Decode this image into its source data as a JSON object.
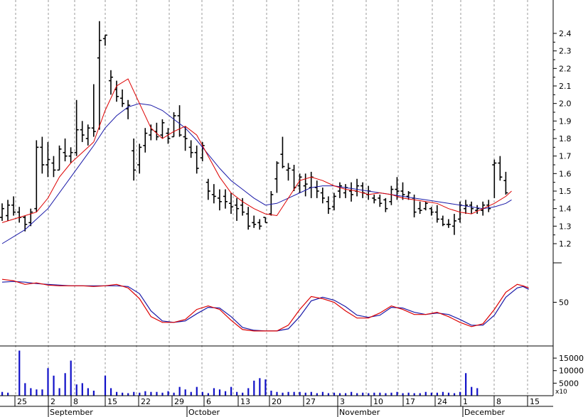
{
  "chart_data": {
    "type": "stock-chart",
    "colors": {
      "bar": "#000000",
      "ma_fast": "#dd0000",
      "ma_slow": "#1a1aa8",
      "volume": "#1010c8",
      "grid": "#9a9a9a"
    },
    "x_axis": {
      "day_labels": [
        "25",
        "2",
        "8",
        "15",
        "22",
        "29",
        "6",
        "13",
        "20",
        "27",
        "3",
        "10",
        "17",
        "24",
        "1",
        "8",
        "15"
      ],
      "month_labels": [
        "September",
        "October",
        "November",
        "December"
      ]
    },
    "price_panel": {
      "y_ticks": [
        "1.2",
        "1.3",
        "1.4",
        "1.5",
        "1.6",
        "1.7",
        "1.8",
        "1.9",
        "2.0",
        "2.1",
        "2.2",
        "2.3",
        "2.4"
      ],
      "ylim": [
        1.12,
        2.6
      ],
      "bars": [
        [
          1.43,
          1.33,
          1.35,
          1.4
        ],
        [
          1.45,
          1.33,
          1.36,
          1.42
        ],
        [
          1.47,
          1.36,
          1.42,
          1.38
        ],
        [
          1.41,
          1.32,
          1.38,
          1.35
        ],
        [
          1.36,
          1.27,
          1.35,
          1.31
        ],
        [
          1.4,
          1.3,
          1.32,
          1.38
        ],
        [
          1.79,
          1.38,
          1.4,
          1.75
        ],
        [
          1.81,
          1.6,
          1.75,
          1.65
        ],
        [
          1.78,
          1.58,
          1.65,
          1.68
        ],
        [
          1.7,
          1.58,
          1.66,
          1.62
        ],
        [
          1.76,
          1.62,
          1.62,
          1.74
        ],
        [
          1.8,
          1.67,
          1.72,
          1.7
        ],
        [
          1.75,
          1.66,
          1.7,
          1.72
        ],
        [
          2.02,
          1.7,
          1.72,
          1.85
        ],
        [
          1.9,
          1.78,
          1.85,
          1.82
        ],
        [
          1.88,
          1.76,
          1.8,
          1.86
        ],
        [
          2.11,
          1.81,
          1.86,
          1.84
        ],
        [
          2.47,
          1.85,
          2.26,
          2.36
        ],
        [
          2.39,
          2.33,
          2.37,
          2.39
        ],
        [
          2.19,
          2.05,
          2.13,
          2.15
        ],
        [
          2.13,
          2.01,
          2.08,
          2.04
        ],
        [
          2.08,
          1.98,
          2.03,
          2.0
        ],
        [
          2.02,
          1.91,
          1.97,
          1.99
        ],
        [
          1.8,
          1.56,
          1.73,
          1.62
        ],
        [
          1.77,
          1.6,
          1.65,
          1.75
        ],
        [
          1.86,
          1.72,
          1.76,
          1.83
        ],
        [
          1.88,
          1.79,
          1.82,
          1.85
        ],
        [
          1.89,
          1.79,
          1.84,
          1.81
        ],
        [
          1.91,
          1.8,
          1.82,
          1.89
        ],
        [
          1.86,
          1.77,
          1.83,
          1.8
        ],
        [
          1.95,
          1.81,
          1.81,
          1.93
        ],
        [
          1.99,
          1.81,
          1.93,
          1.82
        ],
        [
          1.87,
          1.73,
          1.81,
          1.8
        ],
        [
          1.79,
          1.69,
          1.75,
          1.72
        ],
        [
          1.76,
          1.6,
          1.72,
          1.63
        ],
        [
          1.78,
          1.67,
          1.69,
          1.76
        ],
        [
          1.57,
          1.45,
          1.55,
          1.5
        ],
        [
          1.54,
          1.43,
          1.48,
          1.47
        ],
        [
          1.51,
          1.39,
          1.46,
          1.44
        ],
        [
          1.51,
          1.4,
          1.47,
          1.44
        ],
        [
          1.49,
          1.37,
          1.43,
          1.41
        ],
        [
          1.46,
          1.33,
          1.42,
          1.4
        ],
        [
          1.46,
          1.36,
          1.42,
          1.38
        ],
        [
          1.41,
          1.28,
          1.37,
          1.3
        ],
        [
          1.36,
          1.29,
          1.32,
          1.31
        ],
        [
          1.34,
          1.28,
          1.32,
          1.3
        ],
        [
          1.35,
          1.32,
          1.35,
          1.32
        ],
        [
          1.5,
          1.36,
          1.37,
          1.48
        ],
        [
          1.67,
          1.49,
          1.57,
          1.66
        ],
        [
          1.81,
          1.63,
          1.71,
          1.64
        ],
        [
          1.66,
          1.56,
          1.62,
          1.63
        ],
        [
          1.65,
          1.5,
          1.62,
          1.52
        ],
        [
          1.6,
          1.49,
          1.53,
          1.58
        ],
        [
          1.6,
          1.47,
          1.53,
          1.54
        ],
        [
          1.61,
          1.46,
          1.52,
          1.58
        ],
        [
          1.56,
          1.46,
          1.52,
          1.5
        ],
        [
          1.52,
          1.43,
          1.49,
          1.46
        ],
        [
          1.47,
          1.37,
          1.44,
          1.4
        ],
        [
          1.49,
          1.39,
          1.41,
          1.47
        ],
        [
          1.55,
          1.46,
          1.5,
          1.53
        ],
        [
          1.54,
          1.46,
          1.49,
          1.52
        ],
        [
          1.55,
          1.44,
          1.5,
          1.48
        ],
        [
          1.57,
          1.47,
          1.5,
          1.53
        ],
        [
          1.55,
          1.46,
          1.53,
          1.49
        ],
        [
          1.53,
          1.45,
          1.48,
          1.5
        ],
        [
          1.48,
          1.43,
          1.46,
          1.45
        ],
        [
          1.48,
          1.41,
          1.46,
          1.43
        ],
        [
          1.46,
          1.38,
          1.45,
          1.4
        ],
        [
          1.53,
          1.42,
          1.44,
          1.51
        ],
        [
          1.58,
          1.45,
          1.51,
          1.5
        ],
        [
          1.55,
          1.45,
          1.5,
          1.48
        ],
        [
          1.5,
          1.45,
          1.47,
          1.49
        ],
        [
          1.48,
          1.35,
          1.46,
          1.38
        ],
        [
          1.44,
          1.37,
          1.4,
          1.39
        ],
        [
          1.44,
          1.39,
          1.4,
          1.43
        ],
        [
          1.41,
          1.36,
          1.4,
          1.38
        ],
        [
          1.42,
          1.32,
          1.38,
          1.34
        ],
        [
          1.36,
          1.3,
          1.34,
          1.31
        ],
        [
          1.34,
          1.29,
          1.31,
          1.31
        ],
        [
          1.37,
          1.25,
          1.3,
          1.33
        ],
        [
          1.44,
          1.32,
          1.34,
          1.42
        ],
        [
          1.45,
          1.37,
          1.4,
          1.42
        ],
        [
          1.44,
          1.37,
          1.42,
          1.4
        ],
        [
          1.42,
          1.37,
          1.39,
          1.4
        ],
        [
          1.44,
          1.36,
          1.39,
          1.42
        ],
        [
          1.45,
          1.38,
          1.42,
          1.4
        ],
        [
          1.68,
          1.46,
          1.65,
          1.66
        ],
        [
          1.7,
          1.56,
          1.66,
          1.58
        ],
        [
          1.61,
          1.48,
          1.56,
          1.49
        ]
      ],
      "ma_fast": [
        [
          0,
          1.32
        ],
        [
          3,
          1.35
        ],
        [
          6,
          1.38
        ],
        [
          8,
          1.46
        ],
        [
          10,
          1.58
        ],
        [
          12,
          1.66
        ],
        [
          14,
          1.72
        ],
        [
          16,
          1.78
        ],
        [
          18,
          1.96
        ],
        [
          20,
          2.1
        ],
        [
          22,
          2.14
        ],
        [
          24,
          2.0
        ],
        [
          26,
          1.86
        ],
        [
          28,
          1.8
        ],
        [
          30,
          1.84
        ],
        [
          32,
          1.87
        ],
        [
          34,
          1.82
        ],
        [
          36,
          1.7
        ],
        [
          38,
          1.58
        ],
        [
          40,
          1.49
        ],
        [
          42,
          1.44
        ],
        [
          44,
          1.4
        ],
        [
          46,
          1.37
        ],
        [
          48,
          1.36
        ],
        [
          50,
          1.46
        ],
        [
          52,
          1.56
        ],
        [
          54,
          1.58
        ],
        [
          56,
          1.56
        ],
        [
          58,
          1.53
        ],
        [
          60,
          1.51
        ],
        [
          62,
          1.5
        ],
        [
          64,
          1.48
        ],
        [
          66,
          1.49
        ],
        [
          68,
          1.48
        ],
        [
          70,
          1.46
        ],
        [
          72,
          1.45
        ],
        [
          74,
          1.44
        ],
        [
          76,
          1.43
        ],
        [
          78,
          1.4
        ],
        [
          80,
          1.38
        ],
        [
          82,
          1.37
        ],
        [
          84,
          1.4
        ],
        [
          86,
          1.43
        ],
        [
          88,
          1.47
        ],
        [
          89,
          1.5
        ]
      ],
      "ma_slow": [
        [
          0,
          1.2
        ],
        [
          4,
          1.28
        ],
        [
          8,
          1.4
        ],
        [
          12,
          1.58
        ],
        [
          16,
          1.76
        ],
        [
          18,
          1.86
        ],
        [
          20,
          1.93
        ],
        [
          22,
          1.98
        ],
        [
          24,
          2.0
        ],
        [
          26,
          1.99
        ],
        [
          28,
          1.96
        ],
        [
          30,
          1.91
        ],
        [
          32,
          1.86
        ],
        [
          34,
          1.79
        ],
        [
          36,
          1.71
        ],
        [
          38,
          1.63
        ],
        [
          40,
          1.56
        ],
        [
          42,
          1.51
        ],
        [
          44,
          1.46
        ],
        [
          46,
          1.42
        ],
        [
          48,
          1.43
        ],
        [
          50,
          1.46
        ],
        [
          52,
          1.49
        ],
        [
          54,
          1.52
        ],
        [
          56,
          1.53
        ],
        [
          58,
          1.53
        ],
        [
          60,
          1.52
        ],
        [
          62,
          1.51
        ],
        [
          64,
          1.5
        ],
        [
          66,
          1.49
        ],
        [
          68,
          1.48
        ],
        [
          70,
          1.47
        ],
        [
          72,
          1.46
        ],
        [
          74,
          1.45
        ],
        [
          76,
          1.44
        ],
        [
          78,
          1.43
        ],
        [
          80,
          1.42
        ],
        [
          82,
          1.41
        ],
        [
          84,
          1.4
        ],
        [
          86,
          1.41
        ],
        [
          88,
          1.43
        ],
        [
          89,
          1.45
        ]
      ]
    },
    "oscillator_panel": {
      "y_ticks": [
        "50"
      ],
      "ylim": [
        0,
        100
      ],
      "fast": [
        [
          0,
          82
        ],
        [
          2,
          80
        ],
        [
          4,
          75
        ],
        [
          6,
          77
        ],
        [
          8,
          74
        ],
        [
          10,
          73
        ],
        [
          12,
          73
        ],
        [
          14,
          73
        ],
        [
          16,
          72
        ],
        [
          18,
          73
        ],
        [
          20,
          75
        ],
        [
          22,
          70
        ],
        [
          24,
          55
        ],
        [
          26,
          30
        ],
        [
          28,
          22
        ],
        [
          30,
          22
        ],
        [
          32,
          26
        ],
        [
          34,
          40
        ],
        [
          36,
          45
        ],
        [
          38,
          40
        ],
        [
          40,
          25
        ],
        [
          42,
          12
        ],
        [
          44,
          10
        ],
        [
          46,
          10
        ],
        [
          48,
          10
        ],
        [
          50,
          18
        ],
        [
          52,
          40
        ],
        [
          54,
          58
        ],
        [
          56,
          55
        ],
        [
          58,
          50
        ],
        [
          60,
          38
        ],
        [
          62,
          28
        ],
        [
          64,
          28
        ],
        [
          66,
          35
        ],
        [
          68,
          45
        ],
        [
          70,
          40
        ],
        [
          72,
          33
        ],
        [
          74,
          33
        ],
        [
          76,
          36
        ],
        [
          78,
          30
        ],
        [
          80,
          22
        ],
        [
          82,
          16
        ],
        [
          84,
          20
        ],
        [
          86,
          40
        ],
        [
          88,
          64
        ],
        [
          90,
          75
        ],
        [
          91,
          73
        ],
        [
          92,
          70
        ]
      ],
      "slow": [
        [
          0,
          78
        ],
        [
          2,
          79
        ],
        [
          4,
          78
        ],
        [
          6,
          76
        ],
        [
          8,
          75
        ],
        [
          10,
          74
        ],
        [
          12,
          73
        ],
        [
          14,
          73
        ],
        [
          16,
          73
        ],
        [
          18,
          73
        ],
        [
          20,
          73
        ],
        [
          22,
          72
        ],
        [
          24,
          62
        ],
        [
          26,
          38
        ],
        [
          28,
          24
        ],
        [
          30,
          22
        ],
        [
          32,
          24
        ],
        [
          34,
          34
        ],
        [
          36,
          43
        ],
        [
          38,
          42
        ],
        [
          40,
          30
        ],
        [
          42,
          15
        ],
        [
          44,
          11
        ],
        [
          46,
          10
        ],
        [
          48,
          10
        ],
        [
          50,
          13
        ],
        [
          52,
          30
        ],
        [
          54,
          52
        ],
        [
          56,
          57
        ],
        [
          58,
          53
        ],
        [
          60,
          44
        ],
        [
          62,
          32
        ],
        [
          64,
          29
        ],
        [
          66,
          32
        ],
        [
          68,
          43
        ],
        [
          70,
          42
        ],
        [
          72,
          36
        ],
        [
          74,
          33
        ],
        [
          76,
          35
        ],
        [
          78,
          33
        ],
        [
          80,
          26
        ],
        [
          82,
          18
        ],
        [
          84,
          18
        ],
        [
          86,
          32
        ],
        [
          88,
          57
        ],
        [
          90,
          70
        ],
        [
          91,
          72
        ],
        [
          92,
          68
        ]
      ]
    },
    "volume_panel": {
      "y_ticks": [
        "15000",
        "10000",
        "5000"
      ],
      "unit_label": "x10",
      "ylim": [
        0,
        19000
      ],
      "values": [
        1500,
        1200,
        0,
        18000,
        5000,
        3000,
        2500,
        2500,
        11000,
        8000,
        3000,
        9000,
        14000,
        4500,
        5000,
        3000,
        2000,
        0,
        8000,
        3000,
        1500,
        1200,
        1000,
        1500,
        1200,
        1800,
        1500,
        1500,
        1200,
        1800,
        1200,
        3500,
        2500,
        1500,
        3500,
        1500,
        1000,
        3000,
        2500,
        1800,
        3500,
        1500,
        1200,
        3000,
        6000,
        7000,
        6500,
        2000,
        1500,
        1200,
        1500,
        1500,
        1500,
        1200,
        1500,
        1000,
        1500,
        1000,
        1200,
        1000,
        1000,
        1500,
        1000,
        1200,
        1000,
        1200,
        1200,
        1000,
        1200,
        1500,
        1000,
        1200,
        1000,
        1000,
        1500,
        1200,
        1200,
        1500,
        1200,
        1000,
        1500,
        9000,
        3500,
        3000
      ]
    }
  }
}
